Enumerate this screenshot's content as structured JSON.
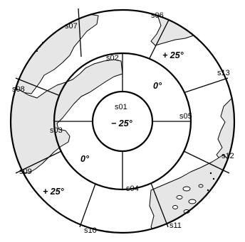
{
  "sectors": [
    {
      "id": "s01",
      "zone": "center"
    },
    {
      "id": "s02",
      "zone": "inner-ring"
    },
    {
      "id": "s03",
      "zone": "inner-ring"
    },
    {
      "id": "s04",
      "zone": "inner-ring"
    },
    {
      "id": "s05",
      "zone": "inner-ring"
    },
    {
      "id": "s06",
      "zone": "outer-ring"
    },
    {
      "id": "s07",
      "zone": "outer-ring"
    },
    {
      "id": "s08",
      "zone": "outer-ring"
    },
    {
      "id": "s09",
      "zone": "outer-ring"
    },
    {
      "id": "s10",
      "zone": "outer-ring"
    },
    {
      "id": "s11",
      "zone": "outer-ring"
    },
    {
      "id": "s12",
      "zone": "outer-ring"
    },
    {
      "id": "s13",
      "zone": "outer-ring"
    }
  ],
  "temperatures": {
    "center": "− 25°",
    "inner_right": "0°",
    "inner_left": "0°",
    "outer_top_right": "+ 25°",
    "outer_bottom_left": "+ 25°"
  },
  "colors": {
    "land": "#e6e6e6",
    "lines": "#000000",
    "background": "#ffffff"
  }
}
